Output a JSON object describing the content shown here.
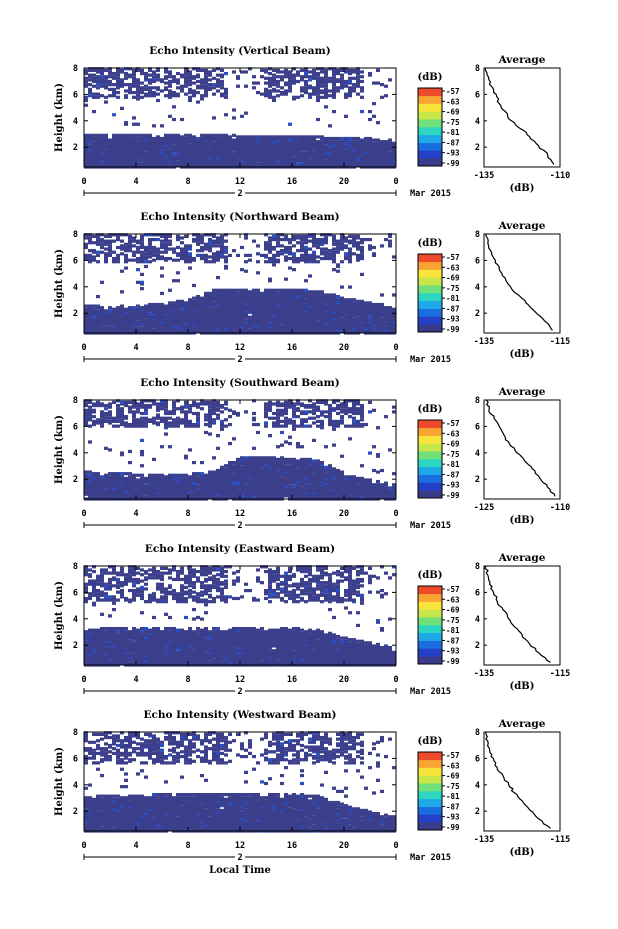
{
  "figure": {
    "date_label": "Mar 2015",
    "x_label": "Local Time",
    "day_label": "2",
    "colorbar_unit": "(dB)",
    "profile_title": "Average",
    "profile_unit": "(dB)"
  },
  "colors": {
    "background": "#ffffff",
    "echo_low": "#3b3f8c",
    "echo_mid": "#2a4fc2",
    "colorbar_scale": [
      "#3a3a8a",
      "#2440c8",
      "#1a6fe0",
      "#1fa8e8",
      "#2dd6c0",
      "#6fe07a",
      "#c7e64a",
      "#f8e43a",
      "#f9a533",
      "#ee4b2b"
    ]
  },
  "chart_data": [
    {
      "type": "heatmap",
      "title": "Echo Intensity (Vertical Beam)",
      "ylabel": "Height (km)",
      "xlabel": "",
      "x_ticks": [
        "0",
        "4",
        "8",
        "12",
        "16",
        "20",
        "0"
      ],
      "y_ticks": [
        "2",
        "4",
        "6",
        "8"
      ],
      "xlim": [
        0,
        24
      ],
      "ylim": [
        0.5,
        8
      ],
      "colorbar_ticks": [
        "-57",
        "-63",
        "-69",
        "-75",
        "-81",
        "-87",
        "-93",
        "-99"
      ],
      "colorbar_range": [
        -99,
        -57
      ],
      "low_layer_top_km": [
        3.0,
        3.0,
        3.0,
        3.0,
        3.0,
        3.0,
        2.9,
        2.9,
        2.8,
        2.8,
        2.7,
        2.7,
        2.5
      ],
      "upper_band_km": [
        5.7,
        8.0
      ],
      "profile": {
        "title": "Average",
        "xlabel": "(dB)",
        "x_ticks": [
          "-135",
          "-110"
        ],
        "y_ticks": [
          "2",
          "4",
          "6",
          "8"
        ],
        "xlim": [
          -135,
          -110
        ],
        "ylim": [
          0.5,
          8
        ],
        "x": [
          -134.5,
          -133.5,
          -132.5,
          -131,
          -130,
          -128,
          -126,
          -123,
          -120,
          -117,
          -114,
          -112
        ],
        "y": [
          8.0,
          7.3,
          6.6,
          6.0,
          5.3,
          4.7,
          4.0,
          3.4,
          2.8,
          2.1,
          1.4,
          0.7
        ]
      }
    },
    {
      "type": "heatmap",
      "title": "Echo Intensity (Northward Beam)",
      "ylabel": "Height (km)",
      "xlabel": "",
      "x_ticks": [
        "0",
        "4",
        "8",
        "12",
        "16",
        "20",
        "0"
      ],
      "y_ticks": [
        "2",
        "4",
        "6",
        "8"
      ],
      "xlim": [
        0,
        24
      ],
      "ylim": [
        0.5,
        8
      ],
      "colorbar_ticks": [
        "-57",
        "-63",
        "-69",
        "-75",
        "-81",
        "-87",
        "-93",
        "-99"
      ],
      "colorbar_range": [
        -99,
        -57
      ],
      "low_layer_top_km": [
        2.6,
        2.5,
        2.6,
        2.8,
        3.0,
        3.8,
        3.8,
        3.8,
        3.8,
        3.7,
        3.2,
        2.8,
        2.5
      ],
      "upper_band_km": [
        5.8,
        8.0
      ],
      "profile": {
        "title": "Average",
        "xlabel": "(dB)",
        "x_ticks": [
          "-135",
          "-115"
        ],
        "y_ticks": [
          "2",
          "4",
          "6",
          "8"
        ],
        "xlim": [
          -135,
          -115
        ],
        "ylim": [
          0.5,
          8
        ],
        "x": [
          -134.5,
          -134,
          -133,
          -132,
          -131,
          -129.5,
          -128,
          -126,
          -124,
          -121.5,
          -119,
          -117
        ],
        "y": [
          8.0,
          7.3,
          6.6,
          6.0,
          5.3,
          4.7,
          4.0,
          3.4,
          2.8,
          2.1,
          1.4,
          0.7
        ]
      }
    },
    {
      "type": "heatmap",
      "title": "Echo Intensity (Southward Beam)",
      "ylabel": "Height (km)",
      "xlabel": "",
      "x_ticks": [
        "0",
        "4",
        "8",
        "12",
        "16",
        "20",
        "0"
      ],
      "y_ticks": [
        "2",
        "4",
        "6",
        "8"
      ],
      "xlim": [
        0,
        24
      ],
      "ylim": [
        0.5,
        8
      ],
      "colorbar_ticks": [
        "-57",
        "-63",
        "-69",
        "-75",
        "-81",
        "-87",
        "-93",
        "-99"
      ],
      "colorbar_range": [
        -99,
        -57
      ],
      "low_layer_top_km": [
        2.6,
        2.5,
        2.4,
        2.4,
        2.4,
        2.6,
        3.7,
        3.7,
        3.6,
        3.5,
        2.5,
        2.0,
        1.6
      ],
      "upper_band_km": [
        6.0,
        8.0
      ],
      "profile": {
        "title": "Average",
        "xlabel": "(dB)",
        "x_ticks": [
          "-125",
          "-110"
        ],
        "y_ticks": [
          "2",
          "4",
          "6",
          "8"
        ],
        "xlim": [
          -125,
          -110
        ],
        "ylim": [
          0.5,
          8
        ],
        "x": [
          -124.5,
          -124,
          -123,
          -122,
          -121,
          -120,
          -118.5,
          -117,
          -115.5,
          -114,
          -112.5,
          -111
        ],
        "y": [
          8.0,
          7.3,
          6.6,
          6.0,
          5.3,
          4.7,
          4.0,
          3.4,
          2.8,
          2.1,
          1.4,
          0.7
        ]
      }
    },
    {
      "type": "heatmap",
      "title": "Echo Intensity (Eastward Beam)",
      "ylabel": "Height (km)",
      "xlabel": "",
      "x_ticks": [
        "0",
        "4",
        "8",
        "12",
        "16",
        "20",
        "0"
      ],
      "y_ticks": [
        "2",
        "4",
        "6",
        "8"
      ],
      "xlim": [
        0,
        24
      ],
      "ylim": [
        0.5,
        8
      ],
      "colorbar_ticks": [
        "-57",
        "-63",
        "-69",
        "-75",
        "-81",
        "-87",
        "-93",
        "-99"
      ],
      "colorbar_range": [
        -99,
        -57
      ],
      "low_layer_top_km": [
        3.2,
        3.3,
        3.3,
        3.3,
        3.3,
        3.3,
        3.3,
        3.3,
        3.3,
        3.2,
        2.6,
        2.2,
        1.8
      ],
      "upper_band_km": [
        5.3,
        8.0
      ],
      "profile": {
        "title": "Average",
        "xlabel": "(dB)",
        "x_ticks": [
          "-135",
          "-115"
        ],
        "y_ticks": [
          "2",
          "4",
          "6",
          "8"
        ],
        "xlim": [
          -135,
          -115
        ],
        "ylim": [
          0.5,
          8
        ],
        "x": [
          -134.5,
          -134,
          -133.5,
          -132.5,
          -131.5,
          -130,
          -128.5,
          -127,
          -125,
          -123,
          -120.5,
          -117.5
        ],
        "y": [
          8.0,
          7.3,
          6.6,
          6.0,
          5.3,
          4.7,
          4.0,
          3.4,
          2.8,
          2.1,
          1.4,
          0.7
        ]
      }
    },
    {
      "type": "heatmap",
      "title": "Echo Intensity (Westward Beam)",
      "ylabel": "Height (km)",
      "xlabel": "Local Time",
      "x_ticks": [
        "0",
        "4",
        "8",
        "12",
        "16",
        "20",
        "0"
      ],
      "y_ticks": [
        "2",
        "4",
        "6",
        "8"
      ],
      "xlim": [
        0,
        24
      ],
      "ylim": [
        0.5,
        8
      ],
      "colorbar_ticks": [
        "-57",
        "-63",
        "-69",
        "-75",
        "-81",
        "-87",
        "-93",
        "-99"
      ],
      "colorbar_range": [
        -99,
        -57
      ],
      "low_layer_top_km": [
        3.1,
        3.2,
        3.2,
        3.3,
        3.3,
        3.3,
        3.3,
        3.3,
        3.3,
        3.2,
        2.5,
        2.0,
        1.6
      ],
      "upper_band_km": [
        5.6,
        8.0
      ],
      "profile": {
        "title": "Average",
        "xlabel": "(dB)",
        "x_ticks": [
          "-135",
          "-115"
        ],
        "y_ticks": [
          "2",
          "4",
          "6",
          "8"
        ],
        "xlim": [
          -135,
          -115
        ],
        "ylim": [
          0.5,
          8
        ],
        "x": [
          -134.5,
          -134,
          -133.5,
          -132.5,
          -131.5,
          -130,
          -128.5,
          -127,
          -125,
          -123,
          -120.5,
          -117.5
        ],
        "y": [
          8.0,
          7.3,
          6.6,
          6.0,
          5.3,
          4.7,
          4.0,
          3.4,
          2.8,
          2.1,
          1.4,
          0.7
        ]
      }
    }
  ]
}
